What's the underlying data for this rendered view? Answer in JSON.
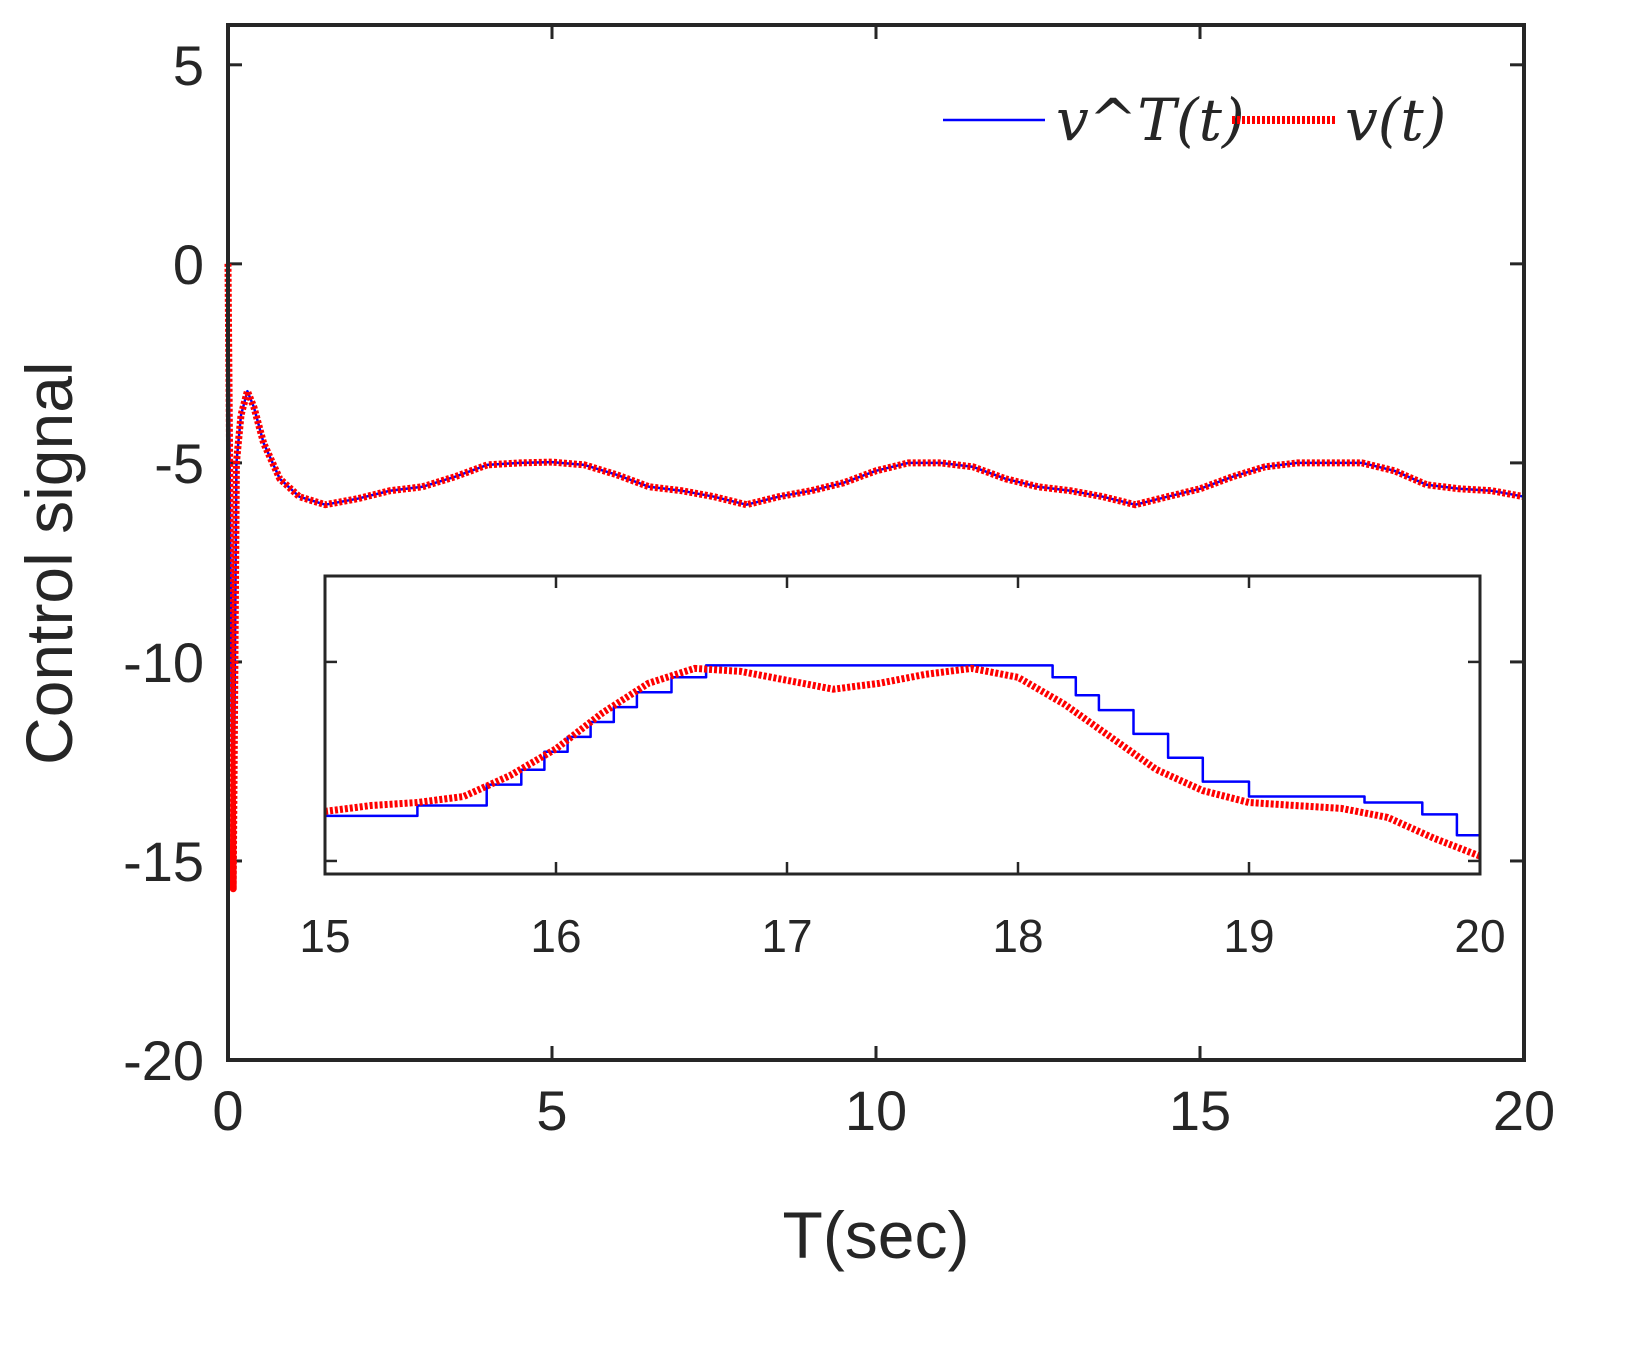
{
  "chart_data": [
    {
      "type": "line",
      "role": "main",
      "xlabel": "T(sec)",
      "ylabel": "Control signal",
      "xlim": [
        0,
        20
      ],
      "ylim": [
        -20,
        6
      ],
      "xticks": [
        0,
        5,
        10,
        15,
        20
      ],
      "yticks": [
        5,
        0,
        -5,
        -10,
        -15,
        -20
      ],
      "xtick_labels": [
        "0",
        "5",
        "10",
        "15",
        "20"
      ],
      "ytick_labels": [
        "5",
        "0",
        "-5",
        "-10",
        "-15",
        "-20"
      ],
      "legend": {
        "location": "top-right",
        "entries": [
          "v^T(t)",
          "v(t)"
        ]
      },
      "series": [
        {
          "name": "v^T(t)",
          "color": "#0000ff",
          "style": "solid",
          "x": [
            0,
            0.08,
            0.13,
            0.2,
            0.3,
            0.4,
            0.55,
            0.8,
            1.1,
            1.5,
            2.0,
            2.5,
            3.0,
            3.5,
            4.0,
            4.5,
            5.0,
            5.5,
            6.0,
            6.5,
            7.0,
            7.5,
            8.0,
            8.5,
            9.0,
            9.5,
            10.0,
            10.5,
            11.0,
            11.5,
            12.0,
            12.5,
            13.0,
            13.5,
            14.0,
            14.5,
            15.0,
            15.5,
            16.0,
            16.5,
            17.0,
            17.5,
            18.0,
            18.5,
            19.0,
            19.5,
            20.0
          ],
          "y": [
            0,
            -15.7,
            -5,
            -3.8,
            -3.2,
            -3.6,
            -4.5,
            -5.4,
            -5.85,
            -6.05,
            -5.9,
            -5.7,
            -5.6,
            -5.35,
            -5.05,
            -5.0,
            -4.98,
            -5.05,
            -5.3,
            -5.6,
            -5.7,
            -5.85,
            -6.05,
            -5.85,
            -5.7,
            -5.5,
            -5.2,
            -5.0,
            -5.0,
            -5.1,
            -5.4,
            -5.6,
            -5.7,
            -5.85,
            -6.05,
            -5.85,
            -5.65,
            -5.35,
            -5.1,
            -5.0,
            -5.0,
            -5.0,
            -5.2,
            -5.55,
            -5.65,
            -5.7,
            -5.85
          ]
        },
        {
          "name": "v(t)",
          "color": "#ff0000",
          "style": "dotted",
          "x": [
            0,
            0.08,
            0.13,
            0.2,
            0.3,
            0.4,
            0.55,
            0.8,
            1.1,
            1.5,
            2.0,
            2.5,
            3.0,
            3.5,
            4.0,
            4.5,
            5.0,
            5.5,
            6.0,
            6.5,
            7.0,
            7.5,
            8.0,
            8.5,
            9.0,
            9.5,
            10.0,
            10.5,
            11.0,
            11.5,
            12.0,
            12.5,
            13.0,
            13.5,
            14.0,
            14.5,
            15.0,
            15.5,
            16.0,
            16.5,
            17.0,
            17.5,
            18.0,
            18.5,
            19.0,
            19.5,
            20.0
          ],
          "y": [
            0,
            -15.7,
            -5,
            -3.8,
            -3.2,
            -3.6,
            -4.5,
            -5.4,
            -5.85,
            -6.05,
            -5.9,
            -5.7,
            -5.6,
            -5.35,
            -5.05,
            -5.0,
            -4.98,
            -5.05,
            -5.3,
            -5.6,
            -5.7,
            -5.85,
            -6.05,
            -5.85,
            -5.7,
            -5.5,
            -5.2,
            -5.0,
            -5.0,
            -5.1,
            -5.4,
            -5.6,
            -5.7,
            -5.85,
            -6.05,
            -5.85,
            -5.65,
            -5.35,
            -5.1,
            -5.0,
            -5.0,
            -5.0,
            -5.2,
            -5.55,
            -5.65,
            -5.7,
            -5.85
          ]
        }
      ]
    },
    {
      "type": "line",
      "role": "inset",
      "xlim": [
        15,
        20
      ],
      "ylim": [
        0,
        1
      ],
      "xticks": [
        15,
        16,
        17,
        18,
        19,
        20
      ],
      "xtick_labels": [
        "15",
        "16",
        "17",
        "18",
        "19",
        "20"
      ],
      "series": [
        {
          "name": "v^T(t)",
          "color": "#0000ff",
          "style": "step",
          "x": [
            15.0,
            15.4,
            15.7,
            15.85,
            15.95,
            16.05,
            16.15,
            16.25,
            16.35,
            16.5,
            16.65,
            18.15,
            18.25,
            18.35,
            18.5,
            18.65,
            18.8,
            19.0,
            19.5,
            19.75,
            19.9,
            20.0
          ],
          "y": [
            0.195,
            0.23,
            0.3,
            0.35,
            0.41,
            0.46,
            0.51,
            0.56,
            0.61,
            0.66,
            0.7,
            0.66,
            0.6,
            0.55,
            0.47,
            0.39,
            0.31,
            0.26,
            0.24,
            0.2,
            0.13,
            0.08
          ]
        },
        {
          "name": "v(t)",
          "color": "#ff0000",
          "style": "dotted",
          "x": [
            15.0,
            15.2,
            15.4,
            15.6,
            15.8,
            16.0,
            16.2,
            16.4,
            16.6,
            16.8,
            17.0,
            17.2,
            17.4,
            17.6,
            17.8,
            18.0,
            18.2,
            18.4,
            18.6,
            18.8,
            19.0,
            19.2,
            19.4,
            19.6,
            19.8,
            20.0
          ],
          "y": [
            0.21,
            0.23,
            0.24,
            0.26,
            0.33,
            0.42,
            0.54,
            0.64,
            0.69,
            0.68,
            0.65,
            0.62,
            0.64,
            0.67,
            0.69,
            0.66,
            0.57,
            0.46,
            0.35,
            0.28,
            0.24,
            0.23,
            0.22,
            0.19,
            0.12,
            0.06
          ]
        }
      ]
    }
  ]
}
